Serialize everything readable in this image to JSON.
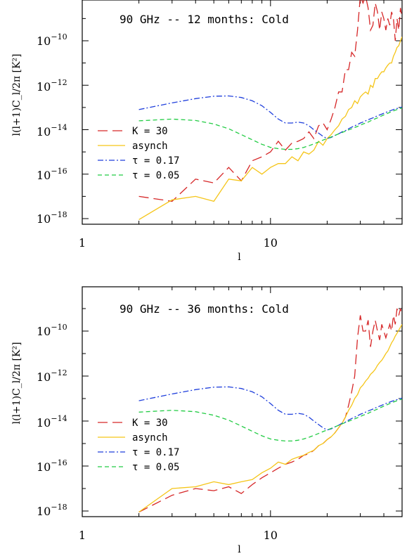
{
  "chart_data": [
    {
      "type": "line",
      "title": "90 GHz -- 12 months:  Cold",
      "xlabel": "l",
      "ylabel": "l(l+1)C_l/2π [K²]",
      "xscale": "log",
      "yscale": "log",
      "xlim": [
        1,
        50
      ],
      "ylim": [
        1e-18,
        1e-08
      ],
      "xticks": [
        "1",
        "10"
      ],
      "yticks": [
        "10⁻¹⁸",
        "10⁻¹⁶",
        "10⁻¹⁴",
        "10⁻¹²",
        "10⁻¹⁰"
      ],
      "legend_position": "left-middle",
      "series": [
        {
          "name": "K = 30",
          "color": "#d62728",
          "style": "long-dash",
          "x": [
            2,
            3,
            4,
            5,
            6,
            7,
            8,
            9,
            10,
            11,
            12,
            13,
            14,
            15,
            16,
            17,
            18,
            19,
            20,
            21,
            22,
            23,
            24,
            25,
            26,
            27,
            28,
            29,
            30,
            31,
            32,
            33,
            34,
            35,
            36,
            37,
            38,
            39,
            40,
            41,
            42,
            43,
            44,
            45,
            46,
            47,
            48,
            49,
            50
          ],
          "y": [
            1e-17,
            6e-18,
            6e-17,
            4e-17,
            2e-16,
            5e-17,
            4e-16,
            6e-16,
            1e-15,
            3e-15,
            1.2e-15,
            2.5e-15,
            3e-15,
            4e-15,
            8e-15,
            4e-15,
            1.5e-14,
            2e-14,
            1e-14,
            3e-14,
            1e-13,
            5e-13,
            5e-13,
            5e-12,
            5e-12,
            3e-11,
            2e-11,
            3e-10,
            1e-08,
            5e-09,
            1e-08,
            3e-09,
            3e-10,
            5e-10,
            5e-09,
            2e-09,
            3e-10,
            2e-09,
            1e-09,
            3e-10,
            1e-09,
            5e-10,
            2e-09,
            1e-09,
            1e-10,
            1e-09,
            3e-10,
            3e-09,
            1e-09
          ]
        },
        {
          "name": "asynch",
          "color": "#f5c518",
          "style": "solid",
          "x": [
            2,
            3,
            4,
            5,
            6,
            7,
            8,
            9,
            10,
            11,
            12,
            13,
            14,
            15,
            16,
            17,
            18,
            19,
            20,
            21,
            22,
            23,
            24,
            25,
            26,
            27,
            28,
            29,
            30,
            31,
            32,
            33,
            34,
            35,
            36,
            37,
            38,
            39,
            40,
            41,
            42,
            43,
            44,
            45,
            46,
            47,
            48,
            49,
            50
          ],
          "y": [
            9e-19,
            7e-18,
            1e-17,
            6e-18,
            6e-17,
            5e-17,
            2e-16,
            1e-16,
            2e-16,
            3e-16,
            3e-16,
            6e-16,
            4e-16,
            1e-15,
            8e-16,
            1.2e-15,
            3e-15,
            2e-15,
            4e-15,
            6e-15,
            1e-14,
            1.5e-14,
            3e-14,
            4e-14,
            8e-14,
            1e-13,
            2e-13,
            1.5e-13,
            3e-13,
            4e-13,
            5e-13,
            4e-13,
            1e-12,
            8e-13,
            2e-12,
            2e-12,
            3e-12,
            4e-12,
            4e-12,
            6e-12,
            8e-12,
            1e-11,
            1e-11,
            2e-11,
            3e-11,
            5e-11,
            6e-11,
            1e-10,
            1.5e-10
          ]
        },
        {
          "name": "τ = 0.17",
          "color": "#1f3fdc",
          "style": "dash-dot",
          "x": [
            2,
            3,
            4,
            5,
            6,
            7,
            8,
            9,
            10,
            11,
            12,
            13,
            14,
            15,
            16,
            17,
            18,
            19,
            20,
            21,
            22,
            23,
            24,
            25,
            26,
            27,
            28,
            29,
            30,
            31,
            32,
            33,
            34,
            35,
            36,
            37,
            38,
            39,
            40,
            41,
            42,
            43,
            44,
            45,
            46,
            47,
            48,
            49,
            50
          ],
          "y": [
            8e-14,
            1.6e-13,
            2.5e-13,
            3.2e-13,
            3.3e-13,
            2.8e-13,
            2e-13,
            1.2e-13,
            6e-14,
            3e-14,
            2e-14,
            2e-14,
            2.2e-14,
            2e-14,
            1.5e-14,
            1e-14,
            7e-15,
            5e-15,
            4e-15,
            4.5e-15,
            5.5e-15,
            6.5e-15,
            8e-15,
            9e-15,
            1.1e-14,
            1.3e-14,
            1.5e-14,
            1.7e-14,
            2e-14,
            2.2e-14,
            2.5e-14,
            2.8e-14,
            3.1e-14,
            3.4e-14,
            3.8e-14,
            4.2e-14,
            4.6e-14,
            5e-14,
            5.5e-14,
            6e-14,
            6.5e-14,
            7e-14,
            7.5e-14,
            8e-14,
            8.5e-14,
            9e-14,
            9.5e-14,
            1e-13,
            1.05e-13
          ]
        },
        {
          "name": "τ = 0.05",
          "color": "#22cc44",
          "style": "short-dash",
          "x": [
            2,
            3,
            4,
            5,
            6,
            7,
            8,
            9,
            10,
            11,
            12,
            13,
            14,
            15,
            16,
            17,
            18,
            19,
            20,
            21,
            22,
            23,
            24,
            25,
            26,
            27,
            28,
            29,
            30,
            31,
            32,
            33,
            34,
            35,
            36,
            37,
            38,
            39,
            40,
            41,
            42,
            43,
            44,
            45,
            46,
            47,
            48,
            49,
            50
          ],
          "y": [
            2.5e-14,
            3e-14,
            2.6e-14,
            1.8e-14,
            1.1e-14,
            6e-15,
            3.5e-15,
            2.2e-15,
            1.6e-15,
            1.4e-15,
            1.3e-15,
            1.3e-15,
            1.4e-15,
            1.6e-15,
            1.9e-15,
            2.3e-15,
            2.8e-15,
            3.4e-15,
            4e-15,
            4.7e-15,
            5.5e-15,
            6.5e-15,
            7.5e-15,
            8.6e-15,
            9.8e-15,
            1.1e-14,
            1.25e-14,
            1.4e-14,
            1.6e-14,
            1.8e-14,
            2e-14,
            2.2e-14,
            2.5e-14,
            2.8e-14,
            3.1e-14,
            3.4e-14,
            3.8e-14,
            4.2e-14,
            4.6e-14,
            5e-14,
            5.5e-14,
            6e-14,
            6.5e-14,
            7e-14,
            7.5e-14,
            8e-14,
            8.5e-14,
            9e-14,
            9.5e-14
          ]
        }
      ]
    },
    {
      "type": "line",
      "title": "90 GHz -- 36 months:  Cold",
      "xlabel": "l",
      "ylabel": "l(l+1)C_l/2π [K²]",
      "xscale": "log",
      "yscale": "log",
      "xlim": [
        1,
        50
      ],
      "ylim": [
        1e-18,
        1e-08
      ],
      "xticks": [
        "1",
        "10"
      ],
      "yticks": [
        "10⁻¹⁸",
        "10⁻¹⁶",
        "10⁻¹⁴",
        "10⁻¹²",
        "10⁻¹⁰"
      ],
      "legend_position": "left-middle",
      "series": [
        {
          "name": "K = 30",
          "color": "#d62728",
          "style": "long-dash",
          "x": [
            2,
            3,
            4,
            5,
            6,
            7,
            8,
            9,
            10,
            11,
            12,
            13,
            14,
            15,
            16,
            17,
            18,
            19,
            20,
            21,
            22,
            23,
            24,
            25,
            26,
            27,
            28,
            29,
            30,
            31,
            32,
            33,
            34,
            35,
            36,
            37,
            38,
            39,
            40,
            41,
            42,
            43,
            44,
            45,
            46,
            47,
            48,
            49,
            50
          ],
          "y": [
            9e-19,
            5e-18,
            1e-17,
            8e-18,
            1.2e-17,
            6e-18,
            1.5e-17,
            3e-17,
            5e-17,
            8e-17,
            1.2e-16,
            1.5e-16,
            2e-16,
            3e-16,
            3.5e-16,
            5e-16,
            8e-16,
            1e-15,
            1.5e-15,
            2e-15,
            3e-15,
            5e-15,
            8e-15,
            1.5e-14,
            5e-14,
            2e-13,
            1e-12,
            5e-11,
            5e-10,
            1e-10,
            1e-10,
            3e-10,
            2e-11,
            1e-10,
            3e-10,
            1e-10,
            4e-11,
            2e-10,
            1e-10,
            5e-11,
            1e-10,
            2e-10,
            1e-10,
            5e-10,
            2e-10,
            1e-09,
            5e-10,
            1e-09,
            5e-10
          ]
        },
        {
          "name": "asynch",
          "color": "#f5c518",
          "style": "solid",
          "x": [
            2,
            3,
            4,
            5,
            6,
            7,
            8,
            9,
            10,
            11,
            12,
            13,
            14,
            15,
            16,
            17,
            18,
            19,
            20,
            21,
            22,
            23,
            24,
            25,
            26,
            27,
            28,
            29,
            30,
            31,
            32,
            33,
            34,
            35,
            36,
            37,
            38,
            39,
            40,
            41,
            42,
            43,
            44,
            45,
            46,
            47,
            48,
            49,
            50
          ],
          "y": [
            9e-19,
            1e-17,
            1.2e-17,
            2e-17,
            1.5e-17,
            2e-17,
            2.5e-17,
            5e-17,
            8e-17,
            1.5e-16,
            1.2e-16,
            2e-16,
            2.5e-16,
            3e-16,
            4e-16,
            5e-16,
            8e-16,
            1e-15,
            1.5e-15,
            2e-15,
            3e-15,
            5e-15,
            8e-15,
            1.5e-14,
            3e-14,
            5e-14,
            1e-13,
            1.5e-13,
            3e-13,
            4e-13,
            6e-13,
            8e-13,
            1.2e-12,
            1.5e-12,
            2e-12,
            3e-12,
            4e-12,
            5e-12,
            7e-12,
            1e-11,
            1.3e-11,
            2e-11,
            3e-11,
            4e-11,
            6e-11,
            8e-11,
            1.1e-10,
            1.5e-10,
            2e-10
          ]
        },
        {
          "name": "τ = 0.17",
          "color": "#1f3fdc",
          "style": "dash-dot",
          "x": [
            2,
            3,
            4,
            5,
            6,
            7,
            8,
            9,
            10,
            11,
            12,
            13,
            14,
            15,
            16,
            17,
            18,
            19,
            20,
            21,
            22,
            23,
            24,
            25,
            26,
            27,
            28,
            29,
            30,
            31,
            32,
            33,
            34,
            35,
            36,
            37,
            38,
            39,
            40,
            41,
            42,
            43,
            44,
            45,
            46,
            47,
            48,
            49,
            50
          ],
          "y": [
            8e-14,
            1.6e-13,
            2.5e-13,
            3.2e-13,
            3.3e-13,
            2.8e-13,
            2e-13,
            1.2e-13,
            6e-14,
            3e-14,
            2e-14,
            2e-14,
            2.2e-14,
            2e-14,
            1.5e-14,
            1e-14,
            7e-15,
            5e-15,
            4e-15,
            4.5e-15,
            5.5e-15,
            6.5e-15,
            8e-15,
            9e-15,
            1.1e-14,
            1.3e-14,
            1.5e-14,
            1.7e-14,
            2e-14,
            2.2e-14,
            2.5e-14,
            2.8e-14,
            3.1e-14,
            3.4e-14,
            3.8e-14,
            4.2e-14,
            4.6e-14,
            5e-14,
            5.5e-14,
            6e-14,
            6.5e-14,
            7e-14,
            7.5e-14,
            8e-14,
            8.5e-14,
            9e-14,
            9.5e-14,
            1e-13,
            1.05e-13
          ]
        },
        {
          "name": "τ = 0.05",
          "color": "#22cc44",
          "style": "short-dash",
          "x": [
            2,
            3,
            4,
            5,
            6,
            7,
            8,
            9,
            10,
            11,
            12,
            13,
            14,
            15,
            16,
            17,
            18,
            19,
            20,
            21,
            22,
            23,
            24,
            25,
            26,
            27,
            28,
            29,
            30,
            31,
            32,
            33,
            34,
            35,
            36,
            37,
            38,
            39,
            40,
            41,
            42,
            43,
            44,
            45,
            46,
            47,
            48,
            49,
            50
          ],
          "y": [
            2.5e-14,
            3e-14,
            2.6e-14,
            1.8e-14,
            1.1e-14,
            6e-15,
            3.5e-15,
            2.2e-15,
            1.6e-15,
            1.4e-15,
            1.3e-15,
            1.3e-15,
            1.4e-15,
            1.6e-15,
            1.9e-15,
            2.3e-15,
            2.8e-15,
            3.4e-15,
            4e-15,
            4.7e-15,
            5.5e-15,
            6.5e-15,
            7.5e-15,
            8.6e-15,
            9.8e-15,
            1.1e-14,
            1.25e-14,
            1.4e-14,
            1.6e-14,
            1.8e-14,
            2e-14,
            2.2e-14,
            2.5e-14,
            2.8e-14,
            3.1e-14,
            3.4e-14,
            3.8e-14,
            4.2e-14,
            4.6e-14,
            5e-14,
            5.5e-14,
            6e-14,
            6.5e-14,
            7e-14,
            7.5e-14,
            8e-14,
            8.5e-14,
            9e-14,
            9.5e-14
          ]
        }
      ]
    }
  ]
}
